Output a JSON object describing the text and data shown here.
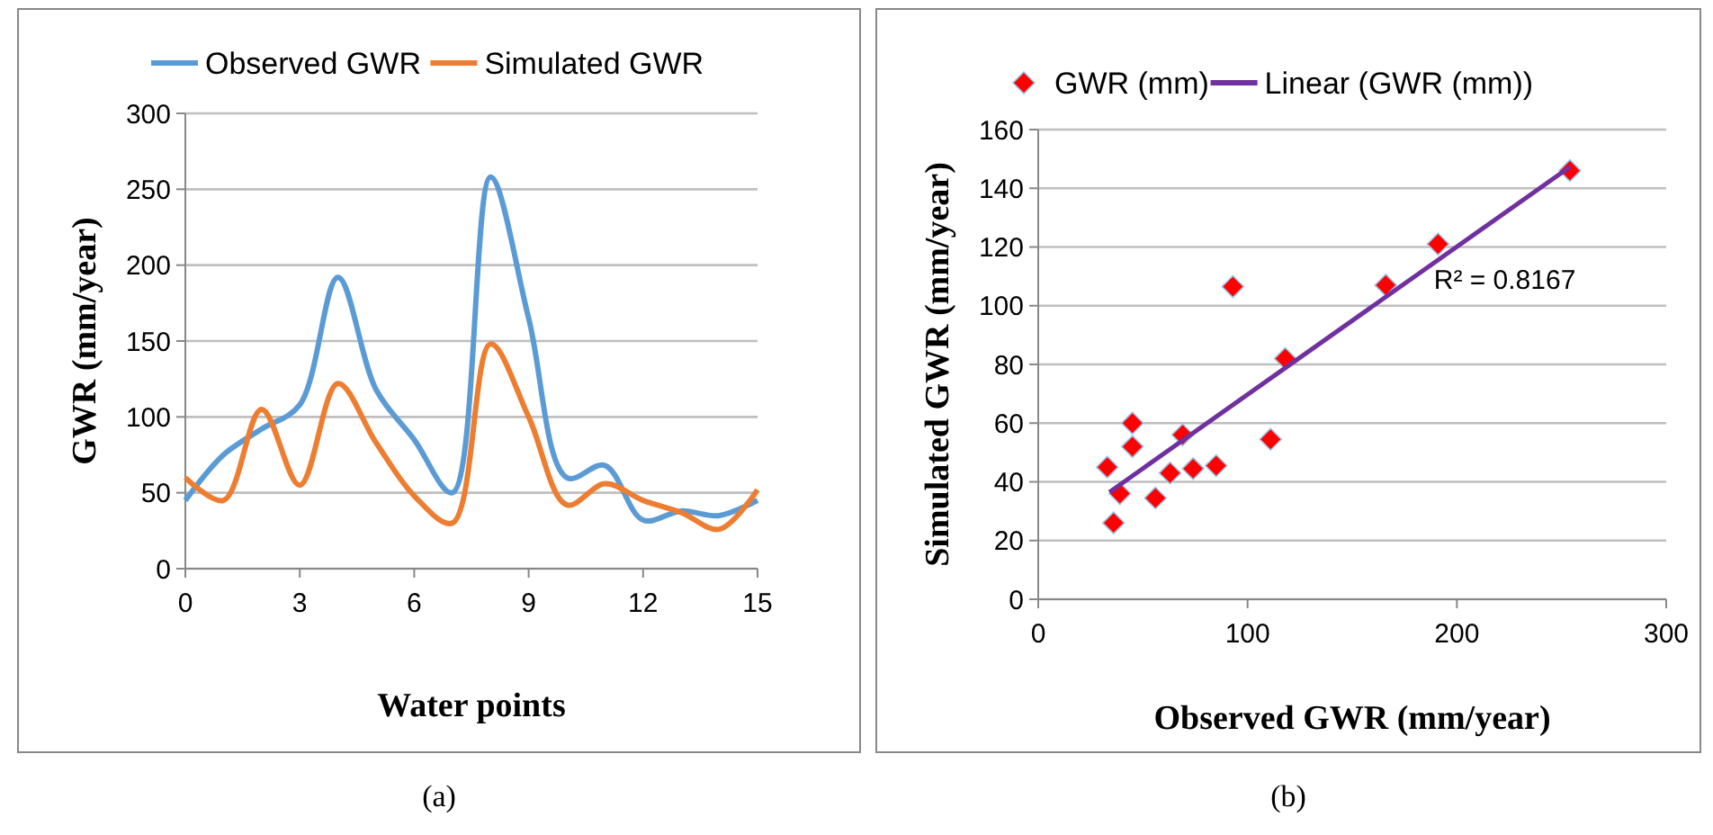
{
  "chart_data": [
    {
      "type": "line",
      "xlabel": "Water points",
      "ylabel": "GWR (mm/year)",
      "x": [
        0,
        1,
        2,
        3,
        4,
        5,
        6,
        7,
        8,
        9,
        10,
        11,
        12,
        13,
        14,
        15
      ],
      "xlim": [
        0,
        15
      ],
      "xticks": [
        0,
        3,
        6,
        9,
        12,
        15
      ],
      "ylim": [
        0,
        300
      ],
      "yticks": [
        0,
        50,
        100,
        150,
        200,
        250,
        300
      ],
      "grid": "y",
      "legend": "top",
      "marker": "none",
      "line_style": "solid",
      "series": [
        {
          "name": "Observed GWR",
          "color": "#5b9bd5",
          "values": [
            45,
            75,
            92,
            108,
            192,
            118,
            85,
            50,
            258,
            165,
            60,
            68,
            32,
            38,
            35,
            45
          ]
        },
        {
          "name": "Simulated GWR",
          "color": "#ed7d31",
          "values": [
            60,
            45,
            105,
            55,
            122,
            83,
            48,
            30,
            148,
            100,
            42,
            56,
            45,
            37,
            26,
            52
          ]
        }
      ],
      "annotations": [
        "(a)"
      ]
    },
    {
      "type": "scatter",
      "xlabel": "Observed GWR (mm/year)",
      "ylabel": "Simulated GWR (mm/year)",
      "xlim": [
        0,
        300
      ],
      "xticks": [
        0,
        100,
        200,
        300
      ],
      "ylim": [
        0,
        160
      ],
      "yticks": [
        0,
        20,
        40,
        60,
        80,
        100,
        120,
        140,
        160
      ],
      "grid": "y",
      "legend": "top",
      "series": [
        {
          "name": "GWR (mm)",
          "color": "#ff0000",
          "marker": "diamond",
          "x": [
            33,
            36,
            39,
            45,
            45,
            56,
            63,
            69,
            74,
            85,
            93,
            111,
            118,
            166,
            191,
            254
          ],
          "values": [
            45,
            26,
            36,
            60,
            52,
            34.5,
            43,
            56,
            44.5,
            45.5,
            106.5,
            54.5,
            82,
            107,
            121,
            146
          ]
        },
        {
          "name": "Linear (GWR (mm))",
          "type": "line",
          "marker": "none",
          "color": "#7030a0",
          "x": [
            34,
            254
          ],
          "values": [
            36.5,
            147.3
          ]
        }
      ],
      "annotations": [
        "R² = 0.8167",
        "(b)"
      ]
    }
  ]
}
